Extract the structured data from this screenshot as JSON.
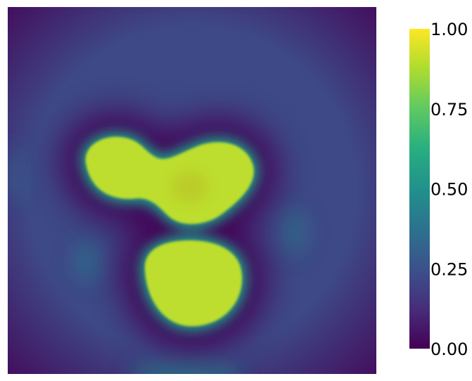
{
  "chart_data": {
    "type": "heatmap",
    "title": "",
    "xlabel": "",
    "ylabel": "",
    "colormap": "viridis",
    "colorbar": {
      "range": [
        0,
        1
      ],
      "ticks": [
        0,
        0.25,
        0.5,
        0.75,
        1
      ],
      "tick_labels": [
        "0.00",
        "0.25",
        "0.50",
        "0.75",
        "1.00"
      ],
      "placement": "right"
    },
    "field": {
      "background_value": 0.22,
      "corner_value": 0.02,
      "high_value": 0.9,
      "regions": [
        {
          "name": "",
          "value": 0.9
        },
        {
          "name": "",
          "value": 0.9
        },
        {
          "name": "",
          "value": 0.9
        }
      ]
    }
  }
}
